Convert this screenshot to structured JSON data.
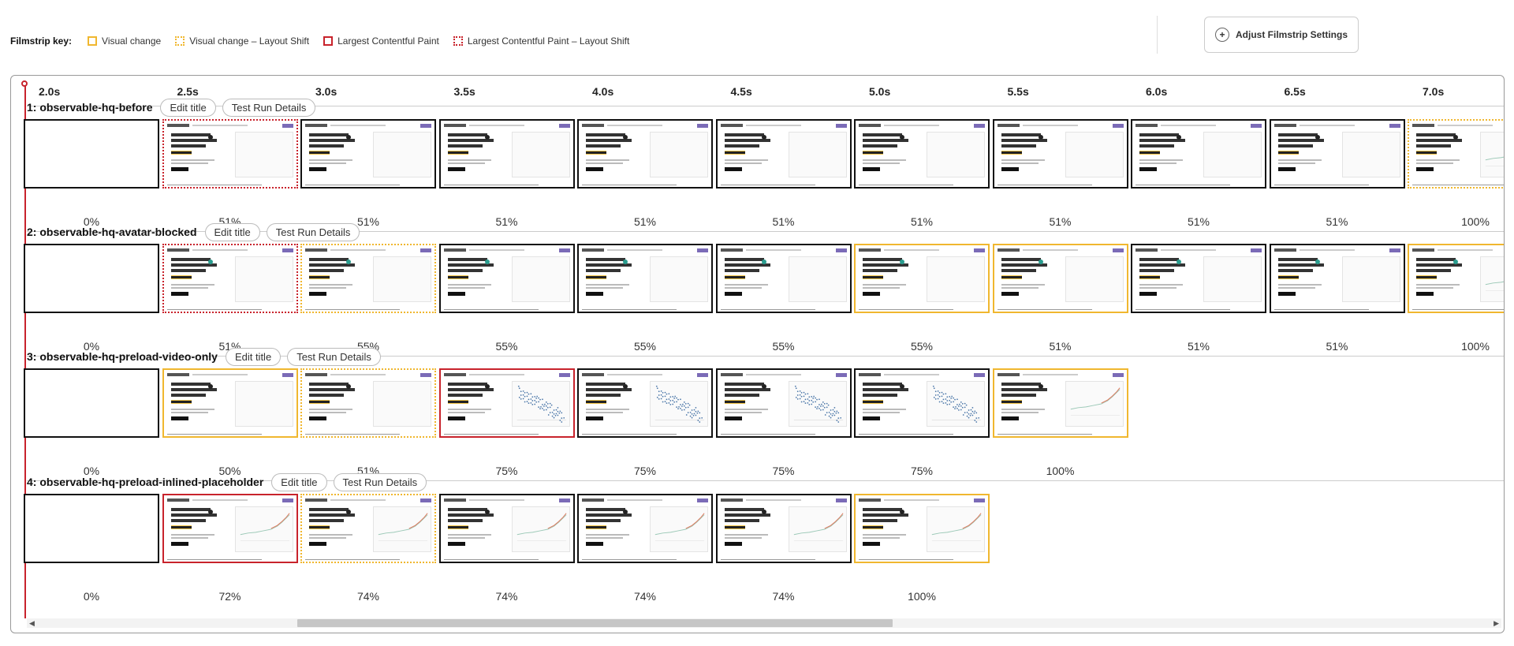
{
  "key": {
    "title": "Filmstrip key:",
    "items": [
      {
        "label": "Visual change",
        "style": "vc"
      },
      {
        "label": "Visual change – Layout Shift",
        "style": "vcls"
      },
      {
        "label": "Largest Contentful Paint",
        "style": "lcp"
      },
      {
        "label": "Largest Contentful Paint – Layout Shift",
        "style": "lcpls"
      }
    ]
  },
  "adjust_button": {
    "icon": "plus-icon",
    "label": "Adjust Filmstrip Settings"
  },
  "colors": {
    "visual_change": "#f0b72f",
    "lcp": "#c8232c",
    "playhead": "#c8232c",
    "button_accent": "#7b6bb7"
  },
  "timeline": [
    "2.0s",
    "2.5s",
    "3.0s",
    "3.5s",
    "4.0s",
    "4.5s",
    "5.0s",
    "5.5s",
    "6.0s",
    "6.5s",
    "7.0s"
  ],
  "edit_label": "Edit title",
  "details_label": "Test Run Details",
  "tests": [
    {
      "title": "1: observable-hq-before",
      "frames": [
        {
          "percent": "0%",
          "style": "none",
          "content": "blank"
        },
        {
          "percent": "51%",
          "style": "lcpls",
          "content": "hero"
        },
        {
          "percent": "51%",
          "style": "none",
          "content": "hero"
        },
        {
          "percent": "51%",
          "style": "none",
          "content": "hero"
        },
        {
          "percent": "51%",
          "style": "none",
          "content": "hero"
        },
        {
          "percent": "51%",
          "style": "none",
          "content": "hero"
        },
        {
          "percent": "51%",
          "style": "none",
          "content": "hero"
        },
        {
          "percent": "51%",
          "style": "none",
          "content": "hero"
        },
        {
          "percent": "51%",
          "style": "none",
          "content": "hero"
        },
        {
          "percent": "51%",
          "style": "none",
          "content": "hero"
        },
        {
          "percent": "100%",
          "style": "vcls",
          "content": "line"
        }
      ]
    },
    {
      "title": "2: observable-hq-avatar-blocked",
      "frames": [
        {
          "percent": "0%",
          "style": "none",
          "content": "blank"
        },
        {
          "percent": "51%",
          "style": "lcpls",
          "content": "hero"
        },
        {
          "percent": "55%",
          "style": "vcls",
          "content": "hero"
        },
        {
          "percent": "55%",
          "style": "none",
          "content": "hero"
        },
        {
          "percent": "55%",
          "style": "none",
          "content": "hero"
        },
        {
          "percent": "55%",
          "style": "none",
          "content": "hero"
        },
        {
          "percent": "55%",
          "style": "vc",
          "content": "hero"
        },
        {
          "percent": "51%",
          "style": "vc",
          "content": "hero"
        },
        {
          "percent": "51%",
          "style": "none",
          "content": "hero"
        },
        {
          "percent": "51%",
          "style": "none",
          "content": "hero"
        },
        {
          "percent": "100%",
          "style": "vc",
          "content": "line"
        }
      ]
    },
    {
      "title": "3: observable-hq-preload-video-only",
      "frames": [
        {
          "percent": "0%",
          "style": "none",
          "content": "blank"
        },
        {
          "percent": "50%",
          "style": "vc",
          "content": "hero"
        },
        {
          "percent": "51%",
          "style": "vcls",
          "content": "hero"
        },
        {
          "percent": "75%",
          "style": "lcp",
          "content": "scatter"
        },
        {
          "percent": "75%",
          "style": "none",
          "content": "scatter"
        },
        {
          "percent": "75%",
          "style": "none",
          "content": "scatter"
        },
        {
          "percent": "75%",
          "style": "none",
          "content": "scatter"
        },
        {
          "percent": "100%",
          "style": "vc",
          "content": "line"
        }
      ]
    },
    {
      "title": "4: observable-hq-preload-inlined-placeholder",
      "frames": [
        {
          "percent": "0%",
          "style": "none",
          "content": "blank"
        },
        {
          "percent": "72%",
          "style": "lcp",
          "content": "line"
        },
        {
          "percent": "74%",
          "style": "vcls",
          "content": "line"
        },
        {
          "percent": "74%",
          "style": "none",
          "content": "line"
        },
        {
          "percent": "74%",
          "style": "none",
          "content": "line"
        },
        {
          "percent": "74%",
          "style": "none",
          "content": "line"
        },
        {
          "percent": "100%",
          "style": "vc",
          "content": "line"
        }
      ]
    }
  ]
}
